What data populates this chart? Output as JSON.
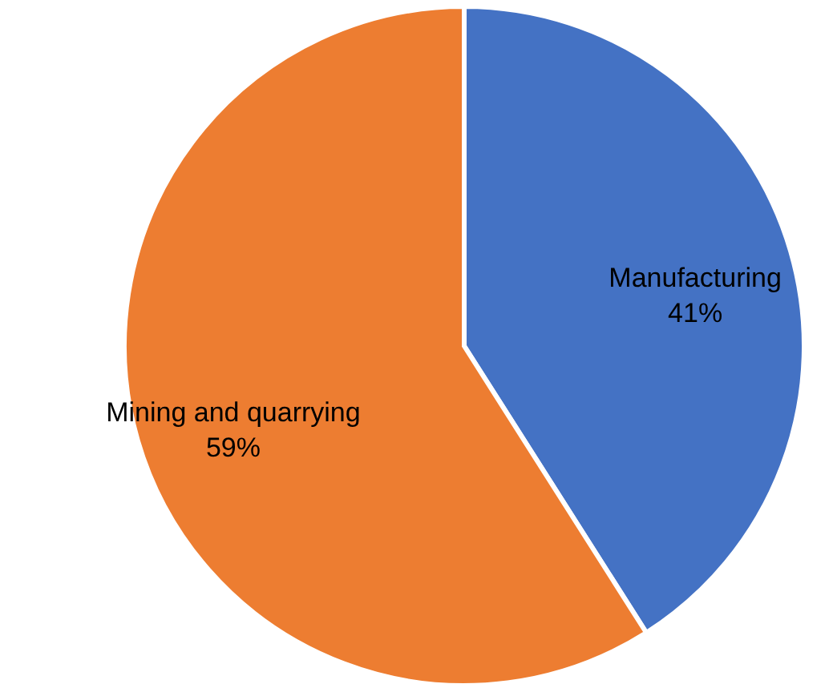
{
  "chart_data": {
    "type": "pie",
    "categories": [
      "Manufacturing",
      "Mining and quarrying"
    ],
    "values": [
      41,
      59
    ],
    "colors": [
      "#4472c4",
      "#ed7d31"
    ],
    "value_labels": [
      "41%",
      "59%"
    ],
    "data_labels": true
  }
}
